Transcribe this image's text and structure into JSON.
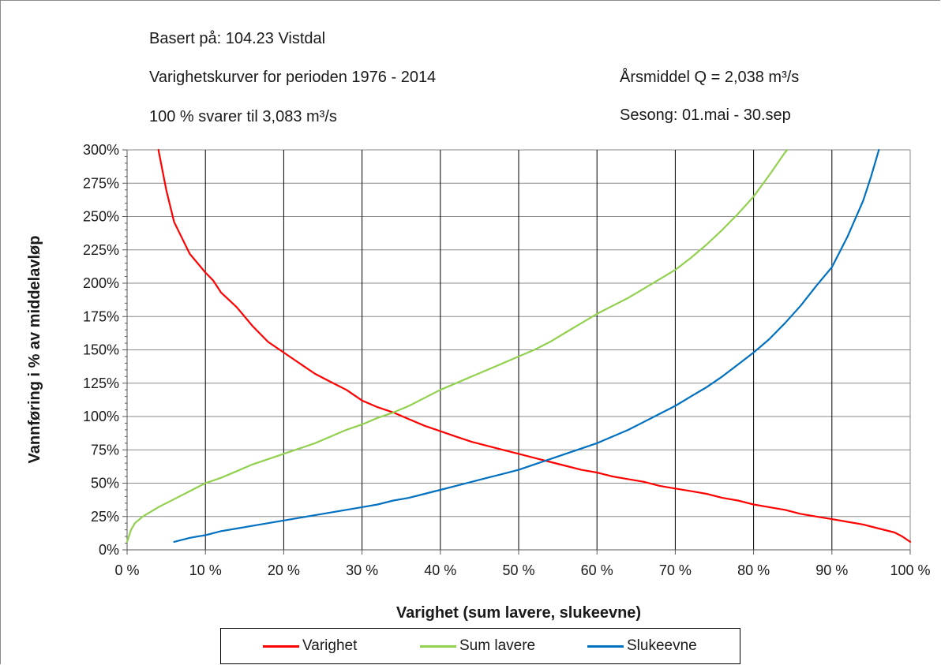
{
  "header": {
    "based_on": "Basert på: 104.23  Vistdal",
    "period": "Varighetskurver for perioden 1976 - 2014",
    "reference": "100 % svarer til 3,083 m³/s",
    "annual_mean": "Årsmiddel Q = 2,038 m³/s",
    "season": "Sesong: 01.mai - 30.sep"
  },
  "chart_data": {
    "type": "line",
    "xlabel": "Varighet (sum lavere, slukeevne)",
    "ylabel": "Vannføring i % av middelavløp",
    "xlim": [
      0,
      100
    ],
    "ylim": [
      0,
      300
    ],
    "x_ticks": [
      "0 %",
      "10 %",
      "20 %",
      "30 %",
      "40 %",
      "50 %",
      "60 %",
      "70 %",
      "80 %",
      "90 %",
      "100 %"
    ],
    "y_ticks": [
      "0%",
      "25%",
      "50%",
      "75%",
      "100%",
      "125%",
      "150%",
      "175%",
      "200%",
      "225%",
      "250%",
      "275%",
      "300%"
    ],
    "grid": {
      "vertical_major": true,
      "horizontal_major": true
    },
    "legend_position": "bottom",
    "series": [
      {
        "name": "Varighet",
        "color": "#ff0000",
        "points": [
          [
            4,
            300
          ],
          [
            5,
            270
          ],
          [
            6,
            246
          ],
          [
            8,
            222
          ],
          [
            10,
            208
          ],
          [
            11,
            202
          ],
          [
            12,
            193
          ],
          [
            14,
            182
          ],
          [
            16,
            168
          ],
          [
            18,
            156
          ],
          [
            20,
            148
          ],
          [
            22,
            140
          ],
          [
            24,
            132
          ],
          [
            26,
            126
          ],
          [
            28,
            120
          ],
          [
            30,
            112
          ],
          [
            32,
            107
          ],
          [
            34,
            103
          ],
          [
            36,
            98
          ],
          [
            38,
            93
          ],
          [
            40,
            89
          ],
          [
            42,
            85
          ],
          [
            44,
            81
          ],
          [
            46,
            78
          ],
          [
            48,
            75
          ],
          [
            50,
            72
          ],
          [
            52,
            69
          ],
          [
            54,
            66
          ],
          [
            56,
            63
          ],
          [
            58,
            60
          ],
          [
            60,
            58
          ],
          [
            62,
            55
          ],
          [
            64,
            53
          ],
          [
            66,
            51
          ],
          [
            68,
            48
          ],
          [
            70,
            46
          ],
          [
            72,
            44
          ],
          [
            74,
            42
          ],
          [
            76,
            39
          ],
          [
            78,
            37
          ],
          [
            80,
            34
          ],
          [
            82,
            32
          ],
          [
            84,
            30
          ],
          [
            86,
            27
          ],
          [
            88,
            25
          ],
          [
            90,
            23
          ],
          [
            92,
            21
          ],
          [
            94,
            19
          ],
          [
            96,
            16
          ],
          [
            98,
            13
          ],
          [
            99,
            10
          ],
          [
            100,
            6
          ]
        ]
      },
      {
        "name": "Sum lavere",
        "color": "#92d050",
        "points": [
          [
            0,
            6
          ],
          [
            0.5,
            15
          ],
          [
            1,
            20
          ],
          [
            2,
            25
          ],
          [
            4,
            32
          ],
          [
            6,
            38
          ],
          [
            8,
            44
          ],
          [
            10,
            50
          ],
          [
            12,
            54
          ],
          [
            14,
            59
          ],
          [
            16,
            64
          ],
          [
            18,
            68
          ],
          [
            20,
            72
          ],
          [
            22,
            76
          ],
          [
            24,
            80
          ],
          [
            26,
            85
          ],
          [
            28,
            90
          ],
          [
            30,
            94
          ],
          [
            32,
            99
          ],
          [
            34,
            103
          ],
          [
            36,
            108
          ],
          [
            38,
            114
          ],
          [
            40,
            120
          ],
          [
            42,
            125
          ],
          [
            44,
            130
          ],
          [
            46,
            135
          ],
          [
            48,
            140
          ],
          [
            50,
            145
          ],
          [
            52,
            150
          ],
          [
            54,
            156
          ],
          [
            56,
            163
          ],
          [
            58,
            170
          ],
          [
            60,
            177
          ],
          [
            62,
            183
          ],
          [
            64,
            189
          ],
          [
            66,
            196
          ],
          [
            68,
            203
          ],
          [
            70,
            210
          ],
          [
            72,
            219
          ],
          [
            74,
            229
          ],
          [
            76,
            240
          ],
          [
            78,
            252
          ],
          [
            80,
            265
          ],
          [
            82,
            281
          ],
          [
            84,
            298
          ],
          [
            84.3,
            300
          ]
        ]
      },
      {
        "name": "Slukeevne",
        "color": "#0070c0",
        "points": [
          [
            6,
            6
          ],
          [
            8,
            9
          ],
          [
            10,
            11
          ],
          [
            12,
            14
          ],
          [
            14,
            16
          ],
          [
            16,
            18
          ],
          [
            18,
            20
          ],
          [
            20,
            22
          ],
          [
            22,
            24
          ],
          [
            24,
            26
          ],
          [
            26,
            28
          ],
          [
            28,
            30
          ],
          [
            30,
            32
          ],
          [
            32,
            34
          ],
          [
            34,
            37
          ],
          [
            36,
            39
          ],
          [
            38,
            42
          ],
          [
            40,
            45
          ],
          [
            42,
            48
          ],
          [
            44,
            51
          ],
          [
            46,
            54
          ],
          [
            48,
            57
          ],
          [
            50,
            60
          ],
          [
            52,
            64
          ],
          [
            54,
            68
          ],
          [
            56,
            72
          ],
          [
            58,
            76
          ],
          [
            60,
            80
          ],
          [
            62,
            85
          ],
          [
            64,
            90
          ],
          [
            66,
            96
          ],
          [
            68,
            102
          ],
          [
            70,
            108
          ],
          [
            72,
            115
          ],
          [
            74,
            122
          ],
          [
            76,
            130
          ],
          [
            78,
            139
          ],
          [
            80,
            148
          ],
          [
            82,
            158
          ],
          [
            84,
            170
          ],
          [
            86,
            183
          ],
          [
            88,
            198
          ],
          [
            90,
            212
          ],
          [
            92,
            235
          ],
          [
            94,
            262
          ],
          [
            95,
            280
          ],
          [
            96,
            300
          ]
        ]
      }
    ]
  }
}
